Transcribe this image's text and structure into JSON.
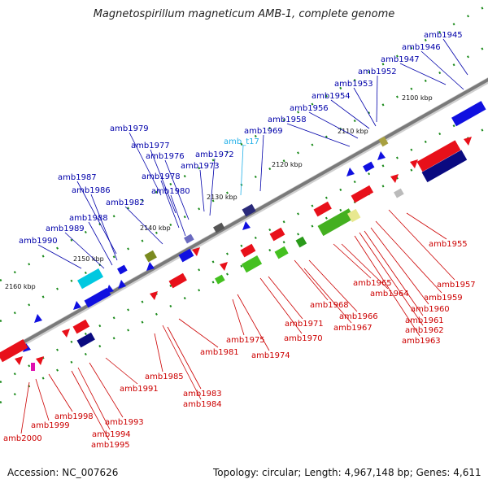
{
  "title": "Magnetospirillum magneticum AMB-1, complete genome",
  "footer": {
    "accession": "Accession: NC_007626",
    "topology": "Topology: circular; Length: 4,967,148 bp; Genes: 4,611"
  },
  "colors": {
    "forward_gene": "#e8101a",
    "reverse_gene": "#1010e0",
    "forward_label": "#cc0000",
    "reverse_label": "#0000aa",
    "trna_label": "#22b0e8",
    "backbone": "#7a7a7a",
    "tick_dot": "#1a8a1a"
  },
  "kbp_ticks": [
    "2100 kbp",
    "2110 kbp",
    "2120 kbp",
    "2130 kbp",
    "2140 kbp",
    "2150 kbp",
    "2160 kbp"
  ],
  "upper_labels": [
    {
      "text": "amb1945"
    },
    {
      "text": "amb1946"
    },
    {
      "text": "amb1947"
    },
    {
      "text": "amb1952"
    },
    {
      "text": "amb1953"
    },
    {
      "text": "amb1954"
    },
    {
      "text": "amb1956"
    },
    {
      "text": "amb1958"
    },
    {
      "text": "amb1969"
    },
    {
      "text": "amb_t17",
      "trna": true
    },
    {
      "text": "amb1972"
    },
    {
      "text": "amb1973"
    },
    {
      "text": "amb1979"
    },
    {
      "text": "amb1977"
    },
    {
      "text": "amb1976"
    },
    {
      "text": "amb1978"
    },
    {
      "text": "amb1980"
    },
    {
      "text": "amb1982"
    },
    {
      "text": "amb1987"
    },
    {
      "text": "amb1986"
    },
    {
      "text": "amb1988"
    },
    {
      "text": "amb1989"
    },
    {
      "text": "amb1990"
    }
  ],
  "lower_labels": [
    {
      "text": "amb1955"
    },
    {
      "text": "amb1957"
    },
    {
      "text": "amb1959"
    },
    {
      "text": "amb1960"
    },
    {
      "text": "amb1961"
    },
    {
      "text": "amb1962"
    },
    {
      "text": "amb1963"
    },
    {
      "text": "amb1965"
    },
    {
      "text": "amb1964"
    },
    {
      "text": "amb1968"
    },
    {
      "text": "amb1966"
    },
    {
      "text": "amb1967"
    },
    {
      "text": "amb1971"
    },
    {
      "text": "amb1970"
    },
    {
      "text": "amb1975"
    },
    {
      "text": "amb1974"
    },
    {
      "text": "amb1981"
    },
    {
      "text": "amb1983"
    },
    {
      "text": "amb1984"
    },
    {
      "text": "amb1985"
    },
    {
      "text": "amb1991"
    },
    {
      "text": "amb1993"
    },
    {
      "text": "amb1994"
    },
    {
      "text": "amb1995"
    },
    {
      "text": "amb1998"
    },
    {
      "text": "amb1999"
    },
    {
      "text": "amb2000"
    }
  ]
}
